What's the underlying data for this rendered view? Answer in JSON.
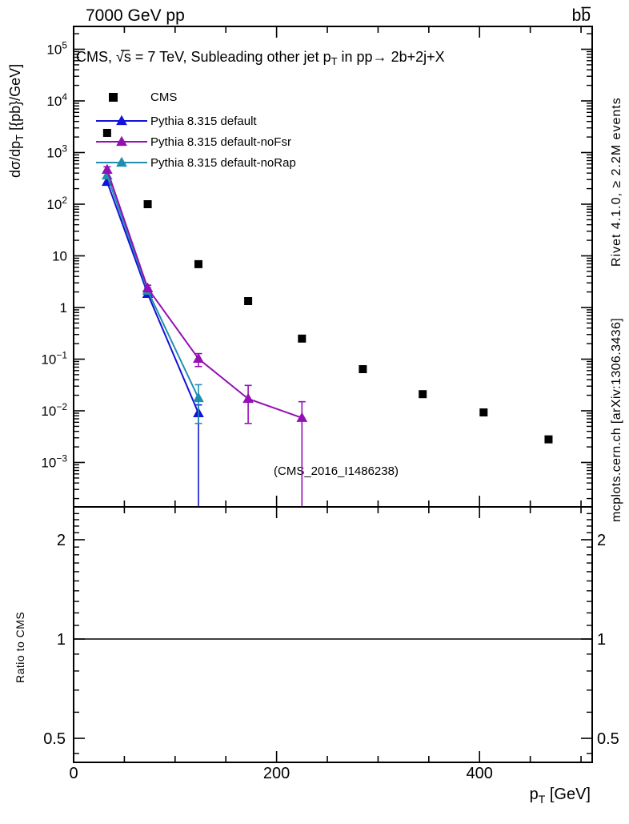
{
  "chart_data": {
    "type": "scatter-line (log y) with ratio panel",
    "header": {
      "left": "7000 GeV pp",
      "right": {
        "text": "bb",
        "overline_second_char": true,
        "meaning": "b bbar"
      }
    },
    "title_parts": {
      "pre": "CMS, √s = 7 TeV, Subleading other jet p",
      "sub": "T",
      "post": " in pp→ 2b+2j+X"
    },
    "ylabel_parts": {
      "pre": "dσ/dp",
      "sub": "T",
      "post": " [{pb}/GeV]"
    },
    "xlabel_parts": {
      "pre": "p",
      "sub": "T",
      "post": " [GeV]"
    },
    "ratio_label": "Ratio to CMS",
    "watermark": "(CMS_2016_I1486238)",
    "side_notes": {
      "top": "Rivet 4.1.0, ≥ 2.2M events",
      "bottom": "mcplots.cern.ch [arXiv:1306.3436]"
    },
    "x_axis": {
      "min": 0,
      "max": 511,
      "unit": "GeV",
      "major_ticks": [
        0,
        200,
        400
      ],
      "minor_step": 50
    },
    "y_axis": {
      "scale": "log",
      "min": 0.00014,
      "max": 280000,
      "labeled_decades": [
        5,
        4,
        3,
        2,
        1,
        0,
        -1,
        -2,
        -3
      ]
    },
    "ratio_axis": {
      "scale": "log",
      "min": 0.42,
      "max": 2.52,
      "labeled_ticks": [
        2,
        1,
        0.5
      ],
      "minor_ticks": [
        0.45,
        0.5,
        0.6,
        0.7,
        0.8,
        0.9,
        1.0,
        1.1,
        1.2,
        1.3,
        1.4,
        1.5,
        1.6,
        1.7,
        1.8,
        1.9,
        2.0,
        2.1,
        2.2,
        2.3,
        2.4
      ]
    },
    "ratio_reference": 1,
    "colors": {
      "cms": "#000000",
      "default": "#1212d8",
      "noFsr": "#9410b4",
      "noRap": "#1f8fb0",
      "note_gray": "#999999",
      "watermark_gray": "#b4b4b4"
    },
    "series": [
      {
        "name": "CMS",
        "marker": "square",
        "color": "#000000",
        "has_line": false,
        "x": [
          33,
          73,
          123,
          172,
          225,
          285,
          344,
          404,
          468
        ],
        "y": [
          2400,
          100,
          6.9,
          1.33,
          0.25,
          0.064,
          0.021,
          0.0093,
          0.0028
        ]
      },
      {
        "name": "Pythia 8.315 default",
        "marker": "triangle",
        "color": "#1212d8",
        "has_line": true,
        "x": [
          33,
          73,
          123
        ],
        "y": [
          272,
          1.84,
          0.009
        ],
        "ylo": [
          235,
          1.6,
          null
        ],
        "yhi": [
          315,
          2.1,
          0.013
        ]
      },
      {
        "name": "Pythia 8.315 default-noFsr",
        "marker": "triangle",
        "color": "#9410b4",
        "has_line": true,
        "x": [
          33,
          73,
          123,
          172,
          225
        ],
        "y": [
          465,
          2.36,
          0.102,
          0.0171,
          0.0073
        ],
        "ylo": [
          410,
          2.1,
          0.072,
          0.0057,
          null
        ],
        "yhi": [
          530,
          2.7,
          0.128,
          0.031,
          0.015
        ]
      },
      {
        "name": "Pythia 8.315 default-noRap",
        "marker": "triangle",
        "color": "#1f8fb0",
        "has_line": true,
        "x": [
          33,
          73,
          123
        ],
        "y": [
          361,
          2.12,
          0.0177
        ],
        "ylo": [
          315,
          1.9,
          0.0057
        ],
        "yhi": [
          415,
          2.4,
          0.032
        ]
      }
    ]
  }
}
